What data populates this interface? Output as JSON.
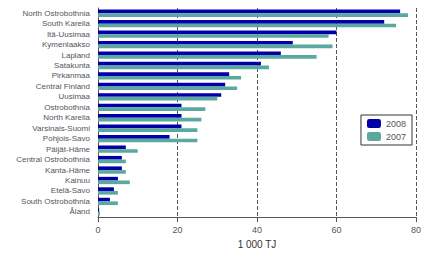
{
  "chart_data": {
    "type": "bar",
    "orientation": "horizontal",
    "categories": [
      "North Ostrobothnia",
      "South Karelia",
      "Itä-Uusimaa",
      "Kymenlaakso",
      "Lapland",
      "Satakunta",
      "Pirkanmaa",
      "Central Finland",
      "Uusimaa",
      "Ostrobothnia",
      "North Karelia",
      "Varsinais-Suomi",
      "Pohjois-Savo",
      "Päijät-Häme",
      "Central Ostrobothnia",
      "Kanta-Häme",
      "Kainuu",
      "Etelä-Savo",
      "South Ostrobothnia",
      "Åland"
    ],
    "series": [
      {
        "name": "2008",
        "color": "#0000AA",
        "values": [
          76,
          72,
          60,
          49,
          46,
          41,
          33,
          32,
          31,
          21,
          21,
          21,
          18,
          7,
          6,
          6,
          5,
          4,
          3,
          0.3
        ]
      },
      {
        "name": "2007",
        "color": "#5BA8A0",
        "values": [
          78,
          75,
          58,
          59,
          55,
          43,
          36,
          35,
          30,
          27,
          26,
          25,
          25,
          10,
          7,
          7,
          8,
          5,
          5,
          0.5
        ]
      }
    ],
    "xlabel": "1 000 TJ",
    "xlim": [
      0,
      80
    ],
    "xticks": [
      0,
      20,
      40,
      60,
      80
    ],
    "grid": true,
    "legend": "right"
  }
}
